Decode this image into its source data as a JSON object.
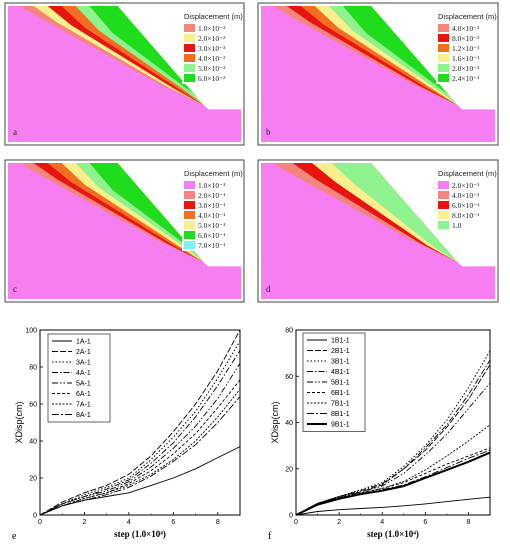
{
  "colors": {
    "magenta": "#f77ef0",
    "salmon": "#f3857c",
    "red": "#e8140f",
    "orange": "#f36e1e",
    "yellow": "#f8f08c",
    "lightgreen": "#8ef38e",
    "green": "#1fdc1c",
    "cyan": "#7bf3f3",
    "frame": "#444444"
  },
  "panels": [
    {
      "label": "a",
      "legend_title": "Displacement (m)",
      "legend": [
        {
          "text": "1.0×10⁻²",
          "color": "salmon"
        },
        {
          "text": "2.0×10⁻²",
          "color": "yellow"
        },
        {
          "text": "3.0×10⁻²",
          "color": "red"
        },
        {
          "text": "4.0×10⁻²",
          "color": "orange"
        },
        {
          "text": "5.0×10⁻²",
          "color": "lightgreen"
        },
        {
          "text": "6.0×10⁻²",
          "color": "green"
        }
      ]
    },
    {
      "label": "b",
      "legend_title": "Displacement (m)",
      "legend": [
        {
          "text": "4.0×10⁻²",
          "color": "salmon"
        },
        {
          "text": "8.0×10⁻²",
          "color": "red"
        },
        {
          "text": "1.2×10⁻¹",
          "color": "orange"
        },
        {
          "text": "1.6×10⁻¹",
          "color": "yellow"
        },
        {
          "text": "2.0×10⁻¹",
          "color": "lightgreen"
        },
        {
          "text": "2.4×10⁻¹",
          "color": "green"
        }
      ]
    },
    {
      "label": "c",
      "legend_title": "Displacement (m)",
      "legend": [
        {
          "text": "1.0×10⁻¹",
          "color": "magenta"
        },
        {
          "text": "2.0×10⁻¹",
          "color": "salmon"
        },
        {
          "text": "3.0×10⁻¹",
          "color": "red"
        },
        {
          "text": "4.0×10⁻¹",
          "color": "orange"
        },
        {
          "text": "5.0×10⁻¹",
          "color": "yellow"
        },
        {
          "text": "6.0×10⁻¹",
          "color": "green"
        },
        {
          "text": "7.0×10⁻¹",
          "color": "cyan"
        }
      ]
    },
    {
      "label": "d",
      "legend_title": "Displacement (m)",
      "legend": [
        {
          "text": "2.0×10⁻¹",
          "color": "magenta"
        },
        {
          "text": "4.0×10⁻¹",
          "color": "salmon"
        },
        {
          "text": "6.0×10⁻¹",
          "color": "red"
        },
        {
          "text": "8.0×10⁻¹",
          "color": "yellow"
        },
        {
          "text": "1.0",
          "color": "lightgreen"
        }
      ]
    }
  ],
  "chart_data": [
    {
      "type": "line",
      "panel_label": "e",
      "xlabel": "step (1.0×10⁴)",
      "ylabel": "XDisp(cm)",
      "xlim": [
        0,
        9
      ],
      "ylim": [
        0,
        100
      ],
      "xticks": [
        0,
        2,
        4,
        6,
        8
      ],
      "yticks": [
        0,
        20,
        40,
        60,
        80,
        100
      ],
      "legend_position": "top-left",
      "x": [
        0,
        1,
        2,
        3,
        4,
        5,
        6,
        7,
        8,
        9
      ],
      "series": [
        {
          "name": "1A-1",
          "dash": "",
          "width": 0.9,
          "values": [
            0,
            5,
            8,
            10,
            12,
            16,
            20,
            25,
            31,
            37
          ]
        },
        {
          "name": "2A-1",
          "dash": "6,2",
          "width": 0.9,
          "values": [
            0,
            7,
            12,
            16,
            22,
            32,
            45,
            60,
            78,
            100
          ]
        },
        {
          "name": "3A-1",
          "dash": "1.5,2",
          "width": 1.0,
          "values": [
            0,
            6,
            11,
            15,
            20,
            30,
            42,
            56,
            74,
            94
          ]
        },
        {
          "name": "4A-1",
          "dash": "6,2,1.5,2",
          "width": 0.9,
          "values": [
            0,
            6,
            10,
            14,
            19,
            28,
            39,
            53,
            70,
            89
          ]
        },
        {
          "name": "5A-1",
          "dash": "6,2,1.5,2,1.5,2",
          "width": 0.9,
          "values": [
            0,
            6,
            10,
            13,
            18,
            26,
            36,
            48,
            63,
            82
          ]
        },
        {
          "name": "6A-1",
          "dash": "3,2",
          "width": 0.9,
          "values": [
            0,
            5,
            9,
            12,
            17,
            24,
            33,
            44,
            58,
            73
          ]
        },
        {
          "name": "7A-1",
          "dash": "2,1.5",
          "width": 0.9,
          "values": [
            0,
            5,
            9,
            12,
            16,
            22,
            30,
            40,
            53,
            68
          ]
        },
        {
          "name": "8A-1",
          "dash": "7,2,2,2",
          "width": 0.9,
          "values": [
            0,
            5,
            8,
            11,
            15,
            21,
            29,
            38,
            50,
            64
          ]
        }
      ]
    },
    {
      "type": "line",
      "panel_label": "f",
      "xlabel": "step (1.0×10⁴)",
      "ylabel": "XDisp(cm)",
      "xlim": [
        0,
        9
      ],
      "ylim": [
        0,
        80
      ],
      "xticks": [
        0,
        2,
        4,
        6,
        8
      ],
      "yticks": [
        0,
        20,
        40,
        60,
        80
      ],
      "legend_position": "top-left",
      "x": [
        0,
        1,
        2,
        3,
        4,
        5,
        6,
        7,
        8,
        9
      ],
      "series": [
        {
          "name": "1B1-1",
          "dash": "",
          "width": 0.9,
          "values": [
            0,
            1.5,
            2.3,
            2.8,
            3.3,
            4,
            4.8,
            5.8,
            6.8,
            7.7
          ]
        },
        {
          "name": "2B1-1",
          "dash": "6,2",
          "width": 0.9,
          "values": [
            0,
            5,
            8,
            10,
            13,
            20,
            28,
            38,
            50,
            65
          ]
        },
        {
          "name": "3B1-1",
          "dash": "1.5,2",
          "width": 1.0,
          "values": [
            0,
            5,
            8,
            11,
            14,
            21,
            30,
            41,
            55,
            71
          ]
        },
        {
          "name": "4B1-1",
          "dash": "6,2,1.5,2",
          "width": 0.9,
          "values": [
            0,
            5,
            8,
            10.5,
            13.5,
            20,
            29,
            39,
            52,
            67
          ]
        },
        {
          "name": "5B1-1",
          "dash": "6,2,1.5,2,1.5,2",
          "width": 0.9,
          "values": [
            0,
            5,
            7.5,
            10,
            12.5,
            18,
            26,
            35,
            46,
            57
          ]
        },
        {
          "name": "6B1-1",
          "dash": "3,2",
          "width": 0.9,
          "values": [
            0,
            5,
            7.5,
            9.5,
            11.5,
            14,
            18,
            22,
            25.5,
            29
          ]
        },
        {
          "name": "7B1-1",
          "dash": "2,1.5",
          "width": 0.9,
          "values": [
            0,
            5,
            7.5,
            9.5,
            11.5,
            14.5,
            19.5,
            25.5,
            32,
            39
          ]
        },
        {
          "name": "8B1-1",
          "dash": "7,2,2,2",
          "width": 0.9,
          "values": [
            0,
            4.5,
            7,
            9,
            11,
            13,
            16.5,
            20.5,
            24.5,
            28
          ]
        },
        {
          "name": "9B1-1",
          "dash": "",
          "width": 2.0,
          "values": [
            0,
            4.5,
            7,
            9,
            10.5,
            12.5,
            16,
            19.5,
            23,
            27
          ]
        }
      ]
    }
  ]
}
